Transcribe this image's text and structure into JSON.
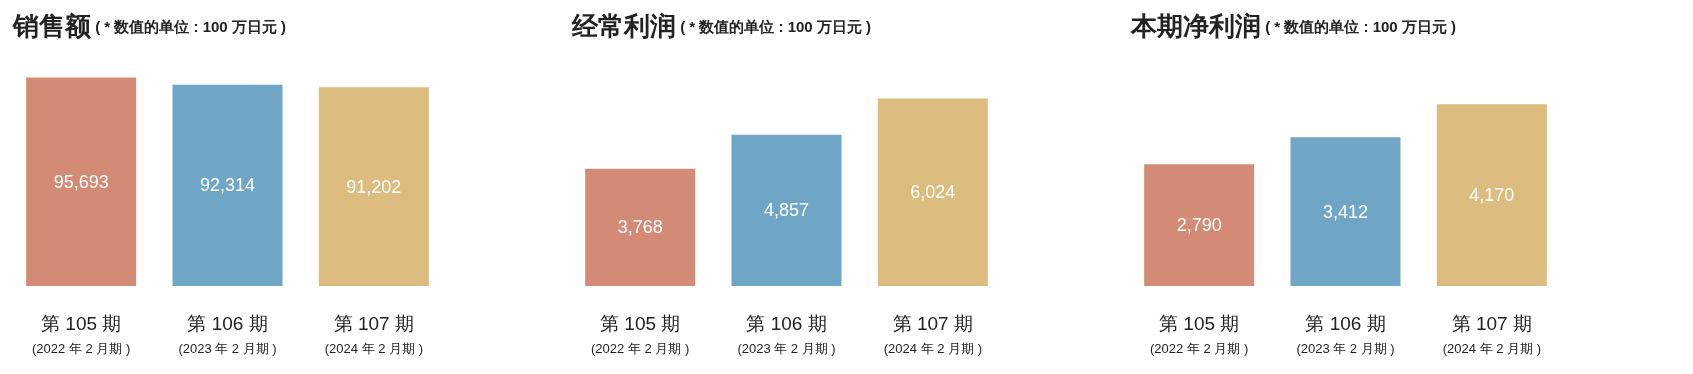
{
  "chart_data": [
    {
      "type": "bar",
      "title": "销售额",
      "subtitle": "( * 数值的单位 : 100 万日元 )",
      "categories": [
        "第 105 期\n(2022 年 2 月期 )",
        "第 106 期\n(2023 年 2 月期 )",
        "第 107 期\n(2024 年 2 月期 )"
      ],
      "values": [
        95693,
        92314,
        91202
      ],
      "value_labels": [
        "95,693",
        "92,314",
        "91,202"
      ],
      "colors": [
        "#d38b76",
        "#6fa6c6",
        "#dcbd7f"
      ]
    },
    {
      "type": "bar",
      "title": "经常利润",
      "subtitle": "( * 数值的单位 : 100 万日元 )",
      "categories": [
        "第 105 期\n(2022 年 2 月期 )",
        "第 106 期\n(2023 年 2 月期 )",
        "第 107 期\n(2024 年 2 月期 )"
      ],
      "values": [
        3768,
        4857,
        6024
      ],
      "value_labels": [
        "3,768",
        "4,857",
        "6,024"
      ],
      "colors": [
        "#d38b76",
        "#6fa6c6",
        "#dcbd7f"
      ]
    },
    {
      "type": "bar",
      "title": "本期净利润",
      "subtitle": "( * 数值的单位 : 100 万日元 )",
      "categories": [
        "第 105 期\n(2022 年 2 月期 )",
        "第 106 期\n(2023 年 2 月期 )",
        "第 107 期\n(2024 年 2 月期 )"
      ],
      "values": [
        2790,
        3412,
        4170
      ],
      "value_labels": [
        "2,790",
        "3,412",
        "4,170"
      ],
      "colors": [
        "#d38b76",
        "#6fa6c6",
        "#dcbd7f"
      ]
    }
  ]
}
